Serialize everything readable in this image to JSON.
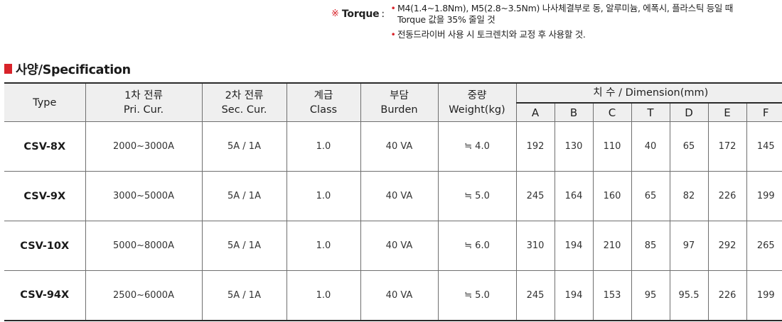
{
  "notes": {
    "mark": "※",
    "torque_label": "Torque",
    "colon": ":",
    "bullet": "•",
    "torque_line1": "M4(1.4~1.8Nm), M5(2.8~3.5Nm) 나사체결부로 동, 알루미늄, 에폭시, 플라스틱 등일 때",
    "torque_line2": "Torque 값을 35% 줄일 것",
    "driver_line": "전동드라이버 사용 시 토크렌치와 교정 후 사용할 것."
  },
  "heading": {
    "title": "사양/Specification",
    "marker_color": "#d8232a"
  },
  "table": {
    "header": {
      "type": "Type",
      "pri_ko": "1차 전류",
      "pri_en": "Pri. Cur.",
      "sec_ko": "2차 전류",
      "sec_en": "Sec. Cur.",
      "class_ko": "계급",
      "class_en": "Class",
      "burden_ko": "부담",
      "burden_en": "Burden",
      "weight_ko": "중량",
      "weight_en": "Weight(kg)",
      "dimension": "치 수 / Dimension(mm)",
      "dims": [
        "A",
        "B",
        "C",
        "T",
        "D",
        "E",
        "F"
      ]
    },
    "rows": [
      {
        "type": "CSV-8X",
        "pri": "2000~3000A",
        "sec": "5A / 1A",
        "class": "1.0",
        "burden": "40 VA",
        "weight": "≒ 4.0",
        "dims": [
          "192",
          "130",
          "110",
          "40",
          "65",
          "172",
          "145"
        ]
      },
      {
        "type": "CSV-9X",
        "pri": "3000~5000A",
        "sec": "5A / 1A",
        "class": "1.0",
        "burden": "40 VA",
        "weight": "≒ 5.0",
        "dims": [
          "245",
          "164",
          "160",
          "65",
          "82",
          "226",
          "199"
        ]
      },
      {
        "type": "CSV-10X",
        "pri": "5000~8000A",
        "sec": "5A / 1A",
        "class": "1.0",
        "burden": "40 VA",
        "weight": "≒ 6.0",
        "dims": [
          "310",
          "194",
          "210",
          "85",
          "97",
          "292",
          "265"
        ]
      },
      {
        "type": "CSV-94X",
        "pri": "2500~6000A",
        "sec": "5A / 1A",
        "class": "1.0",
        "burden": "40 VA",
        "weight": "≒ 5.0",
        "dims": [
          "245",
          "194",
          "153",
          "95",
          "95.5",
          "226",
          "199"
        ]
      }
    ]
  }
}
